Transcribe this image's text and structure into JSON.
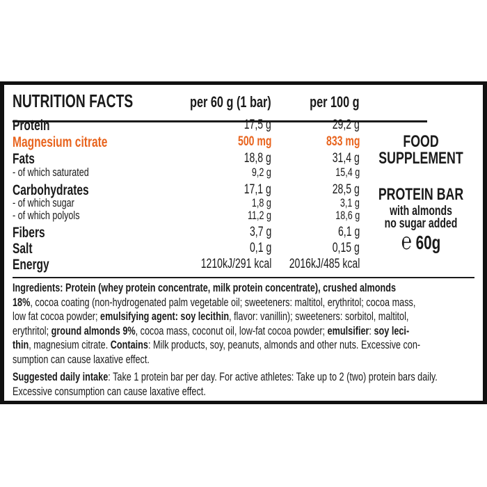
{
  "header": {
    "title": "NUTRITION FACTS",
    "col1": "per 60 g (1 bar)",
    "col2": "per 100 g"
  },
  "rows": [
    {
      "label": "Protein",
      "v1": "17,5 g",
      "v2": "29,2 g",
      "bold": true
    },
    {
      "label": "Magnesium citrate",
      "v1": "500 mg",
      "v2": "833 mg",
      "bold": true,
      "highlight": true
    },
    {
      "label": "Fats",
      "v1": "18,8 g",
      "v2": "31,4 g",
      "bold": true
    },
    {
      "label": "- of which saturated",
      "v1": "9,2 g",
      "v2": "15,4 g",
      "bold": false
    },
    {
      "label": "Carbohydrates",
      "v1": "17,1 g",
      "v2": "28,5 g",
      "bold": true
    },
    {
      "label": "- of which sugar",
      "v1": "1,8 g",
      "v2": "3,1 g",
      "bold": false
    },
    {
      "label": "- of which polyols",
      "v1": "11,2 g",
      "v2": "18,6 g",
      "bold": false
    },
    {
      "label": "Fibers",
      "v1": "3,7 g",
      "v2": "6,1 g",
      "bold": true
    },
    {
      "label": "Salt",
      "v1": "0,1 g",
      "v2": "0,15 g",
      "bold": true
    },
    {
      "label": "Energy",
      "v1": "1210kJ/291 kcal",
      "v2": "2016kJ/485 kcal",
      "bold": true
    }
  ],
  "side": {
    "line1": "FOOD",
    "line2": "SUPPLEMENT",
    "product": "PROTEIN BAR",
    "sub1": "with almonds",
    "sub2": "no sugar added",
    "estimated_sign": "℮",
    "weight": "60g"
  },
  "colors": {
    "highlight": "#e8641e",
    "border": "#111111"
  },
  "ingredients": [
    [
      [
        "Ingredients: Protein (whey protein concentrate, milk protein concentrate), crushed almonds",
        true
      ]
    ],
    [
      [
        "18%",
        true
      ],
      [
        ", cocoa coating (non-hydrogenated palm vegetable oil; sweeteners: maltitol, erythritol; cocoa mass,",
        false
      ]
    ],
    [
      [
        "low fat cocoa powder; ",
        false
      ],
      [
        "emulsifying agent: soy lecithin",
        true
      ],
      [
        ", flavor: vanillin); sweeteners: sorbitol, maltitol,",
        false
      ]
    ],
    [
      [
        "erythritol; ",
        false
      ],
      [
        "ground almonds 9%",
        true
      ],
      [
        ", cocoa mass, coconut oil, low-fat cocoa powder; ",
        false
      ],
      [
        "emulsifier",
        true
      ],
      [
        ": ",
        false
      ],
      [
        "soy leci-",
        true
      ]
    ],
    [
      [
        "thin",
        true
      ],
      [
        ", magnesium citrate. ",
        false
      ],
      [
        "Contains",
        true
      ],
      [
        ": Milk products, soy, peanuts, almonds and other nuts. Excessive con-",
        false
      ]
    ],
    [
      [
        "sumption can cause laxative effect.",
        false
      ]
    ]
  ],
  "intake": [
    [
      [
        "Suggested daily intake",
        true
      ],
      [
        ": Take 1 protein bar per day. For active athletes: Take up to 2 (two) protein bars daily.",
        false
      ]
    ],
    [
      [
        "Excessive consumption can cause laxative effect.",
        false
      ]
    ]
  ]
}
